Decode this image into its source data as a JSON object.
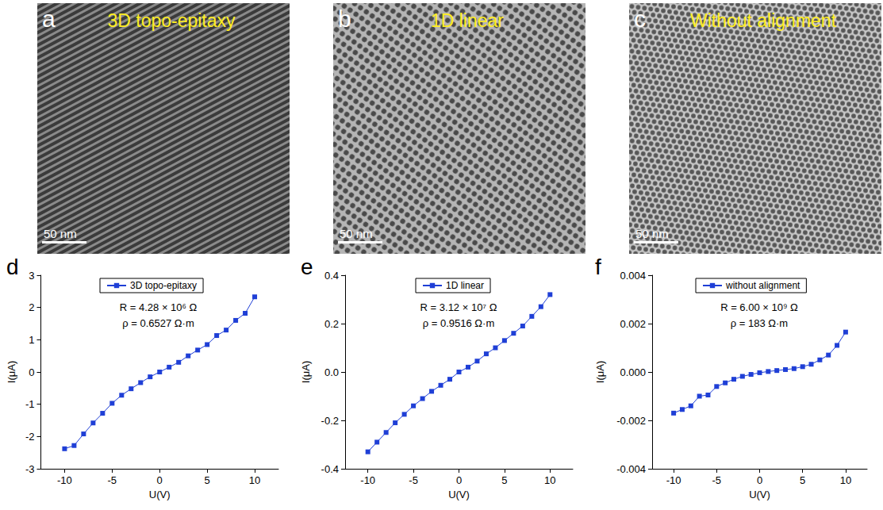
{
  "images": [
    {
      "letter": "a",
      "title": "3D topo-epitaxy",
      "scale_bar": "50 nm"
    },
    {
      "letter": "b",
      "title": "1D linear",
      "scale_bar": "50 nm"
    },
    {
      "letter": "c",
      "title": "Without alignment",
      "scale_bar": "50 nm"
    }
  ],
  "chart_data": [
    {
      "type": "line",
      "letter": "d",
      "x_label": "U(V)",
      "y_label": "I(μA)",
      "x": [
        -10,
        -9,
        -8,
        -7,
        -6,
        -5,
        -4,
        -3,
        -2,
        -1,
        0,
        1,
        2,
        3,
        4,
        5,
        6,
        7,
        8,
        9,
        10
      ],
      "series": [
        {
          "name": "3D topo-epitaxy",
          "color": "#1f3fd6",
          "marker": "square",
          "line_style": "solid",
          "values": [
            -2.38,
            -2.28,
            -1.92,
            -1.58,
            -1.28,
            -0.97,
            -0.72,
            -0.52,
            -0.33,
            -0.15,
            0.0,
            0.15,
            0.3,
            0.5,
            0.68,
            0.85,
            1.13,
            1.3,
            1.6,
            1.82,
            2.33
          ]
        }
      ],
      "annotations": [
        "R = 4.28 × 10⁶ Ω",
        "ρ = 0.6527 Ω·m"
      ],
      "xlim": [
        -12.5,
        12.5
      ],
      "xticks": [
        -10,
        -5,
        0,
        5,
        10
      ],
      "ylim": [
        -3,
        3
      ],
      "yticks": [
        -3,
        -2,
        -1,
        0,
        1,
        2,
        3
      ],
      "grid": false,
      "legend": "top"
    },
    {
      "type": "line",
      "letter": "e",
      "x_label": "U(V)",
      "y_label": "I(μA)",
      "x": [
        -10,
        -9,
        -8,
        -7,
        -6,
        -5,
        -4,
        -3,
        -2,
        -1,
        0,
        1,
        2,
        3,
        4,
        5,
        6,
        7,
        8,
        9,
        10
      ],
      "series": [
        {
          "name": "1D linear",
          "color": "#1f3fd6",
          "marker": "square",
          "line_style": "solid",
          "values": [
            -0.33,
            -0.29,
            -0.25,
            -0.21,
            -0.175,
            -0.14,
            -0.11,
            -0.08,
            -0.055,
            -0.03,
            0.0,
            0.02,
            0.045,
            0.075,
            0.1,
            0.13,
            0.16,
            0.19,
            0.23,
            0.27,
            0.32
          ]
        }
      ],
      "annotations": [
        "R = 3.12 × 10⁷ Ω",
        "ρ = 0.9516 Ω·m"
      ],
      "xlim": [
        -12.5,
        12.5
      ],
      "xticks": [
        -10,
        -5,
        0,
        5,
        10
      ],
      "ylim": [
        -0.4,
        0.4
      ],
      "yticks": [
        -0.4,
        -0.2,
        {
          "value": 0,
          "label": "0.0"
        },
        0.2,
        0.4
      ],
      "grid": false,
      "legend": "top"
    },
    {
      "type": "line",
      "letter": "f",
      "x_label": "U(V)",
      "y_label": "I(μA)",
      "x": [
        -10,
        -9,
        -8,
        -7,
        -6,
        -5,
        -4,
        -3,
        -2,
        -1,
        0,
        1,
        2,
        3,
        4,
        5,
        6,
        7,
        8,
        9,
        10
      ],
      "series": [
        {
          "name": "without alignment",
          "color": "#1f3fd6",
          "marker": "square",
          "line_style": "solid",
          "values": [
            -0.0017,
            -0.00155,
            -0.0014,
            -0.001,
            -0.00095,
            -0.0006,
            -0.00045,
            -0.0003,
            -0.00018,
            -0.0001,
            -3e-05,
            2e-05,
            6e-05,
            0.0001,
            0.00014,
            0.00022,
            0.00032,
            0.0005,
            0.0007,
            0.0011,
            0.00165
          ]
        }
      ],
      "annotations": [
        "R = 6.00 × 10⁹ Ω",
        "ρ = 183 Ω·m"
      ],
      "xlim": [
        -12.5,
        12.5
      ],
      "xticks": [
        -10,
        -5,
        0,
        5,
        10
      ],
      "ylim": [
        -0.004,
        0.004
      ],
      "yticks": [
        -0.004,
        -0.002,
        {
          "value": 0,
          "label": "0.000"
        },
        0.002,
        0.004
      ],
      "grid": false,
      "legend": "top"
    }
  ]
}
